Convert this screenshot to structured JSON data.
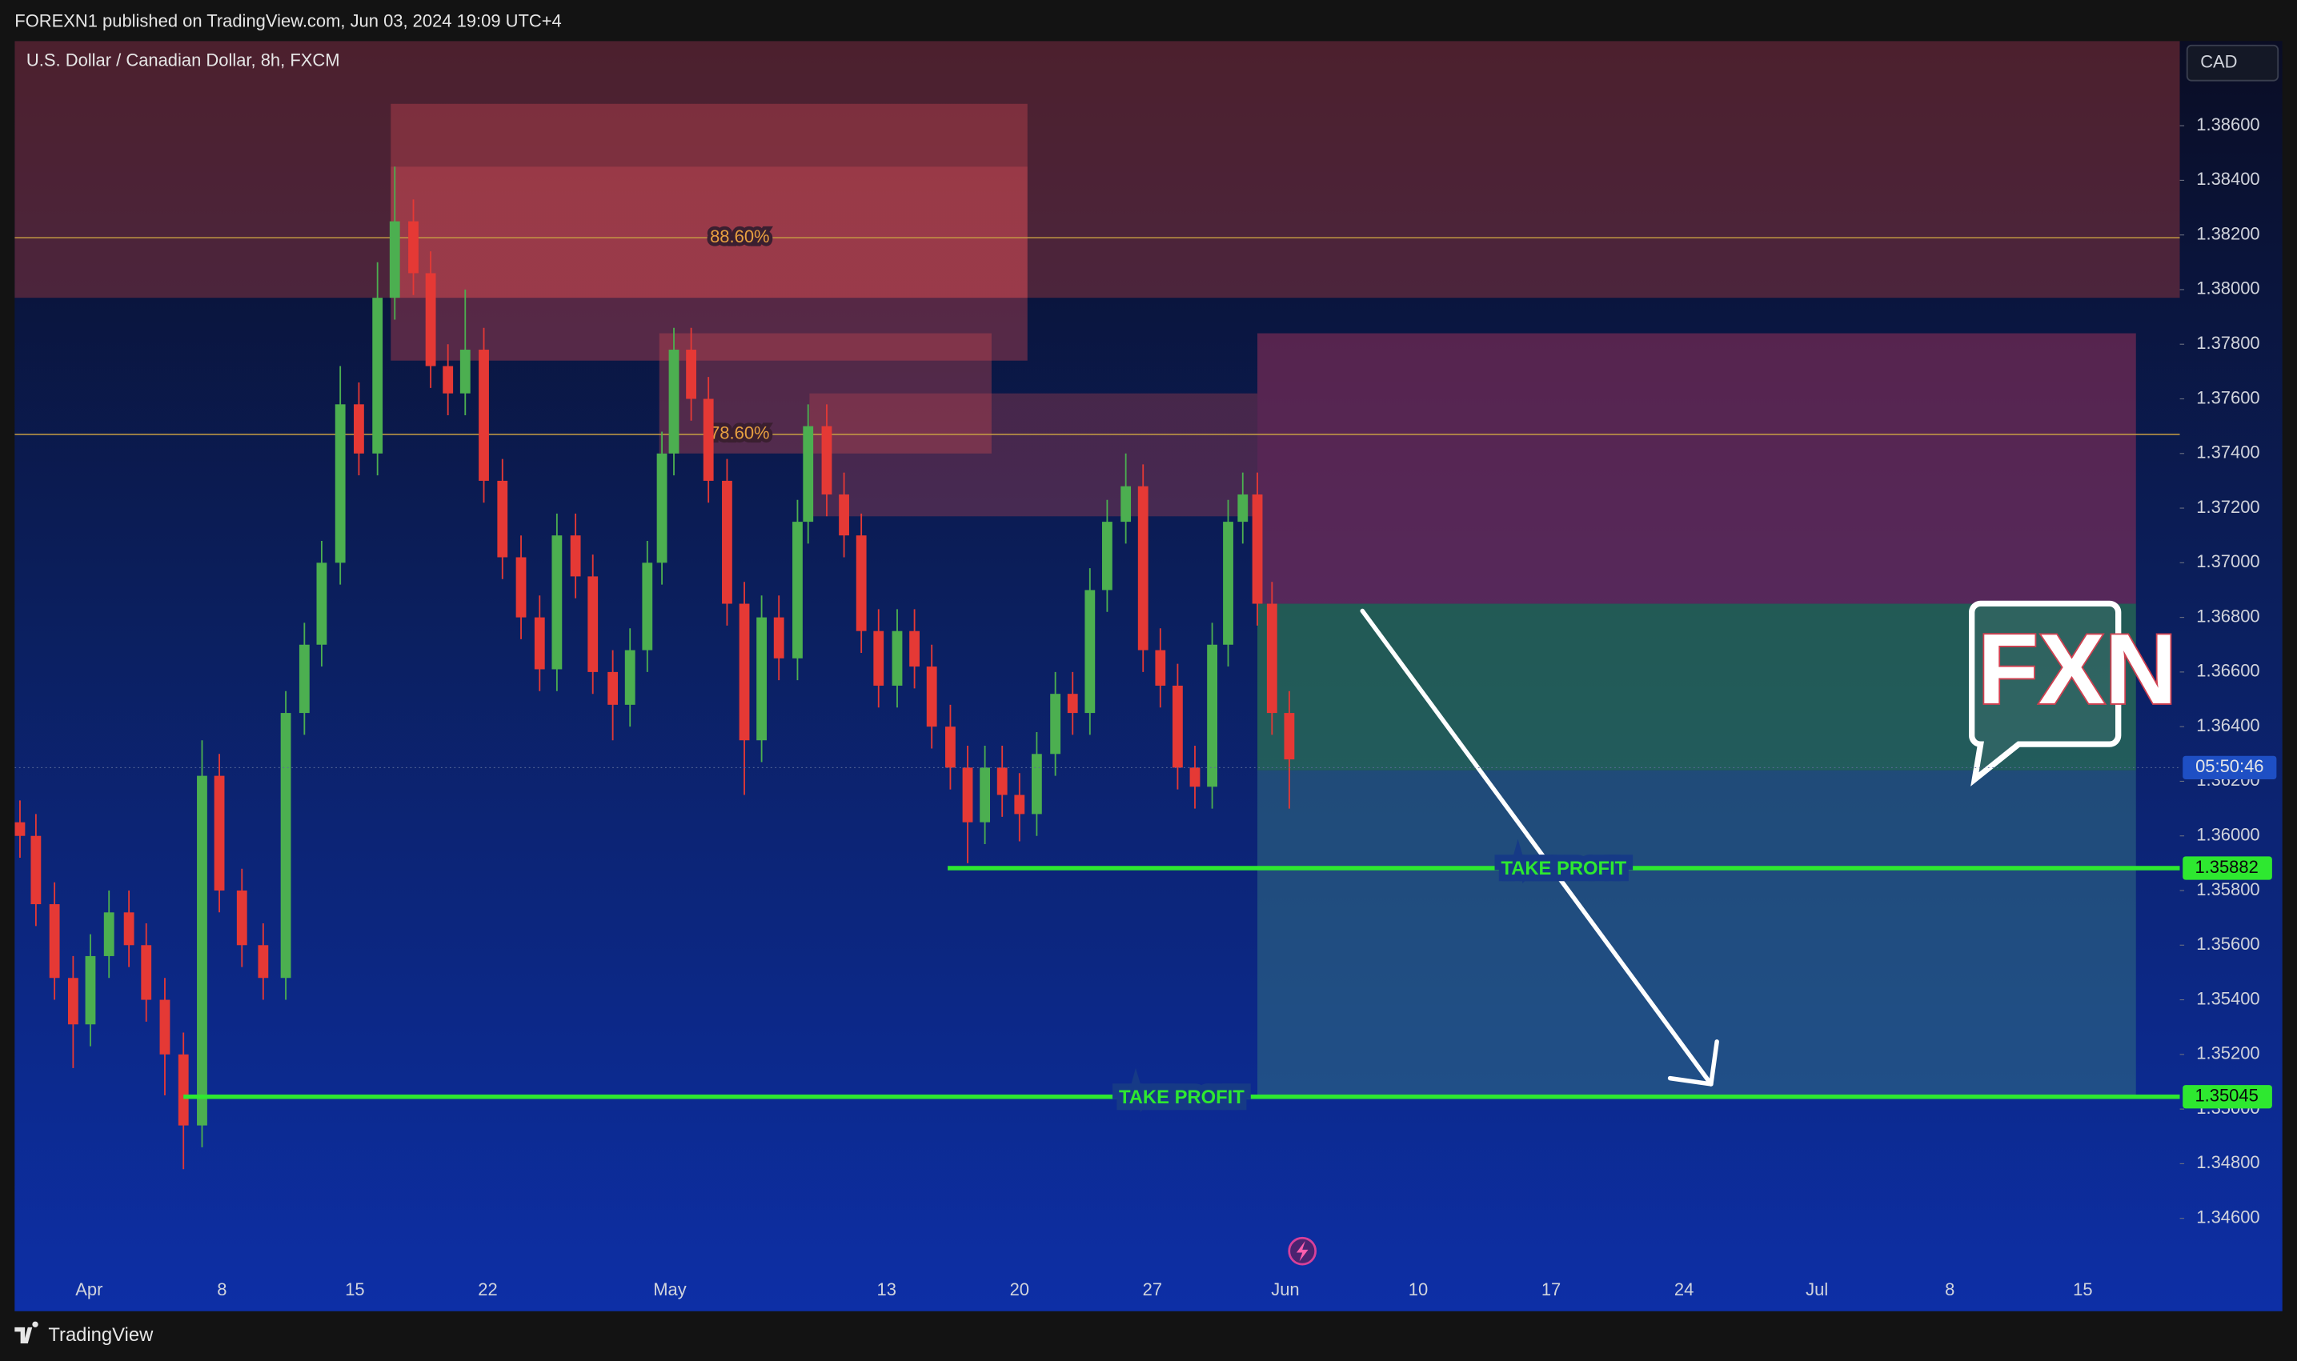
{
  "header": "FOREXN1 published on TradingView.com, Jun 03, 2024 19:09 UTC+4",
  "footer": "TradingView",
  "chart_data": {
    "type": "candlestick",
    "title": "U.S. Dollar / Canadian Dollar, 8h, FXCM",
    "currency": "CAD",
    "x": [
      -0.52,
      -0.4,
      -0.26,
      -0.12,
      0.01,
      0.15,
      0.3,
      0.43,
      0.57,
      0.71,
      0.85,
      0.98,
      1.15,
      1.31,
      1.48,
      1.62,
      1.75,
      1.89,
      2.03,
      2.17,
      2.3,
      2.44,
      2.57,
      2.7,
      2.83,
      2.97,
      3.11,
      3.25,
      3.39,
      3.52,
      3.66,
      3.79,
      3.94,
      4.07,
      4.2,
      4.31,
      4.4,
      4.53,
      4.66,
      4.8,
      4.93,
      5.06,
      5.19,
      5.33,
      5.41,
      5.55,
      5.68,
      5.81,
      5.94,
      6.08,
      6.21,
      6.34,
      6.48,
      6.61,
      6.74,
      6.87,
      7.0,
      7.13,
      7.27,
      7.4,
      7.53,
      7.66,
      7.8,
      7.93,
      8.06,
      8.19,
      8.32,
      8.45,
      8.57,
      8.68,
      8.79,
      8.9,
      9.03
    ],
    "open": [
      1.3605,
      1.36,
      1.3575,
      1.3548,
      1.3531,
      1.3556,
      1.3572,
      1.356,
      1.354,
      1.352,
      1.3494,
      1.3622,
      1.358,
      1.356,
      1.3548,
      1.3645,
      1.367,
      1.37,
      1.3758,
      1.374,
      1.3797,
      1.3825,
      1.3806,
      1.3772,
      1.3762,
      1.3778,
      1.373,
      1.3702,
      1.368,
      1.3661,
      1.371,
      1.3695,
      1.366,
      1.3648,
      1.3668,
      1.37,
      1.374,
      1.3778,
      1.376,
      1.373,
      1.3685,
      1.3635,
      1.368,
      1.3665,
      1.3715,
      1.375,
      1.3725,
      1.371,
      1.3675,
      1.3655,
      1.3675,
      1.3662,
      1.364,
      1.3625,
      1.3605,
      1.3625,
      1.3615,
      1.3608,
      1.363,
      1.3652,
      1.3645,
      1.369,
      1.3715,
      1.3728,
      1.3668,
      1.3655,
      1.3625,
      1.3618,
      1.367,
      1.3715,
      1.3725,
      1.3685,
      1.3645
    ],
    "high": [
      1.3613,
      1.3608,
      1.3583,
      1.3556,
      1.3564,
      1.358,
      1.358,
      1.3568,
      1.3548,
      1.3528,
      1.3635,
      1.363,
      1.3588,
      1.3568,
      1.3653,
      1.3678,
      1.3708,
      1.3772,
      1.3766,
      1.381,
      1.3845,
      1.3833,
      1.3814,
      1.378,
      1.38,
      1.3786,
      1.3738,
      1.371,
      1.3688,
      1.3718,
      1.3718,
      1.3703,
      1.3668,
      1.3676,
      1.3708,
      1.3748,
      1.3786,
      1.3786,
      1.3768,
      1.3738,
      1.3693,
      1.3688,
      1.3688,
      1.3723,
      1.3758,
      1.3758,
      1.3733,
      1.3718,
      1.3683,
      1.3683,
      1.3683,
      1.367,
      1.3648,
      1.3633,
      1.3633,
      1.3633,
      1.3623,
      1.3638,
      1.366,
      1.366,
      1.3698,
      1.3723,
      1.374,
      1.3736,
      1.3676,
      1.3663,
      1.3633,
      1.3678,
      1.3723,
      1.3733,
      1.3733,
      1.3693,
      1.3653
    ],
    "low": [
      1.3592,
      1.3567,
      1.354,
      1.3515,
      1.3523,
      1.3548,
      1.3552,
      1.3532,
      1.3505,
      1.3478,
      1.3486,
      1.3572,
      1.3552,
      1.354,
      1.354,
      1.3637,
      1.3662,
      1.3692,
      1.3732,
      1.3732,
      1.3789,
      1.3798,
      1.3764,
      1.3754,
      1.3754,
      1.3722,
      1.3694,
      1.3672,
      1.3653,
      1.3653,
      1.3687,
      1.3652,
      1.3635,
      1.364,
      1.366,
      1.3692,
      1.3732,
      1.3752,
      1.3722,
      1.3677,
      1.3615,
      1.3627,
      1.3657,
      1.3657,
      1.3707,
      1.3717,
      1.3702,
      1.3667,
      1.3647,
      1.3647,
      1.3654,
      1.3632,
      1.3617,
      1.359,
      1.3597,
      1.3607,
      1.3598,
      1.36,
      1.3622,
      1.3637,
      1.3637,
      1.3682,
      1.3707,
      1.366,
      1.3647,
      1.3617,
      1.361,
      1.361,
      1.3662,
      1.3707,
      1.3677,
      1.3637,
      1.361
    ],
    "close": [
      1.36,
      1.3575,
      1.3548,
      1.3531,
      1.3556,
      1.3572,
      1.356,
      1.354,
      1.352,
      1.3494,
      1.3622,
      1.358,
      1.356,
      1.3548,
      1.3645,
      1.367,
      1.37,
      1.3758,
      1.374,
      1.3797,
      1.3825,
      1.3806,
      1.3772,
      1.3762,
      1.3778,
      1.373,
      1.3702,
      1.368,
      1.3661,
      1.371,
      1.3695,
      1.366,
      1.3648,
      1.3668,
      1.37,
      1.374,
      1.3778,
      1.376,
      1.373,
      1.3685,
      1.3635,
      1.368,
      1.3665,
      1.3715,
      1.375,
      1.3725,
      1.371,
      1.3675,
      1.3655,
      1.3675,
      1.3662,
      1.364,
      1.3625,
      1.3605,
      1.3625,
      1.3615,
      1.3608,
      1.363,
      1.3652,
      1.3645,
      1.369,
      1.3715,
      1.3728,
      1.3668,
      1.3655,
      1.3625,
      1.3618,
      1.367,
      1.3715,
      1.3725,
      1.3685,
      1.3645,
      1.3628
    ],
    "up_color": "#4caf50",
    "down_color": "#e53935",
    "xlim": [
      -0.56,
      15.73
    ],
    "xticks": [
      {
        "value": 0,
        "label": "Apr"
      },
      {
        "value": 1,
        "label": "8"
      },
      {
        "value": 2,
        "label": "15"
      },
      {
        "value": 3,
        "label": "22"
      },
      {
        "value": 4.37,
        "label": "May"
      },
      {
        "value": 6,
        "label": "13"
      },
      {
        "value": 7,
        "label": "20"
      },
      {
        "value": 8,
        "label": "27"
      },
      {
        "value": 9,
        "label": "Jun"
      },
      {
        "value": 10,
        "label": "10"
      },
      {
        "value": 11,
        "label": "17"
      },
      {
        "value": 12,
        "label": "24"
      },
      {
        "value": 13,
        "label": "Jul"
      },
      {
        "value": 14,
        "label": "8"
      },
      {
        "value": 15,
        "label": "15"
      }
    ],
    "ylim": [
      1.3426,
      1.3891
    ],
    "yticks": [
      {
        "value": 1.346,
        "label": "1.34600"
      },
      {
        "value": 1.348,
        "label": "1.34800"
      },
      {
        "value": 1.35,
        "label": "1.35000"
      },
      {
        "value": 1.352,
        "label": "1.35200"
      },
      {
        "value": 1.354,
        "label": "1.35400"
      },
      {
        "value": 1.356,
        "label": "1.35600"
      },
      {
        "value": 1.358,
        "label": "1.35800"
      },
      {
        "value": 1.36,
        "label": "1.36000"
      },
      {
        "value": 1.362,
        "label": "1.36200"
      },
      {
        "value": 1.364,
        "label": "1.36400"
      },
      {
        "value": 1.366,
        "label": "1.36600"
      },
      {
        "value": 1.368,
        "label": "1.36800"
      },
      {
        "value": 1.37,
        "label": "1.37000"
      },
      {
        "value": 1.372,
        "label": "1.37200"
      },
      {
        "value": 1.374,
        "label": "1.37400"
      },
      {
        "value": 1.376,
        "label": "1.37600"
      },
      {
        "value": 1.378,
        "label": "1.37800"
      },
      {
        "value": 1.38,
        "label": "1.38000"
      },
      {
        "value": 1.382,
        "label": "1.38200"
      },
      {
        "value": 1.384,
        "label": "1.38400"
      },
      {
        "value": 1.386,
        "label": "1.38600"
      }
    ],
    "zones": [
      {
        "x": [
          -0.56,
          15.73
        ],
        "y": [
          1.3797,
          1.3891
        ],
        "color": "rgba(170,60,60,0.42)"
      },
      {
        "x": [
          2.27,
          7.06
        ],
        "y": [
          1.3774,
          1.3868
        ],
        "color": "rgba(200,70,80,0.40)"
      },
      {
        "x": [
          2.27,
          7.06
        ],
        "y": [
          1.3797,
          1.3845
        ],
        "color": "rgba(220,80,90,0.30)"
      },
      {
        "x": [
          4.29,
          6.79
        ],
        "y": [
          1.374,
          1.3784
        ],
        "color": "rgba(200,70,80,0.38)"
      },
      {
        "x": [
          5.42,
          8.79
        ],
        "y": [
          1.3717,
          1.3762
        ],
        "color": "rgba(200,70,80,0.32)"
      },
      {
        "x": [
          8.79,
          15.4
        ],
        "y": [
          1.3685,
          1.3784
        ],
        "color": "rgba(150,50,90,0.55)"
      },
      {
        "x": [
          8.79,
          15.4
        ],
        "y": [
          1.3624,
          1.3685
        ],
        "color": "rgba(50,130,80,0.60)"
      },
      {
        "x": [
          8.79,
          15.4
        ],
        "y": [
          1.3505,
          1.3624
        ],
        "color": "rgba(50,110,130,0.55)"
      }
    ],
    "fib_levels": [
      {
        "label": "88.60%",
        "value": 1.3819
      },
      {
        "label": "78.60%",
        "value": 1.3747
      }
    ],
    "take_profit": [
      {
        "label": "TAKE PROFIT",
        "value": 1.35882,
        "x_start": 6.46
      },
      {
        "label": "TAKE PROFIT",
        "value": 1.35045,
        "x_start": 0.71
      }
    ],
    "countdown": {
      "label": "05:50:46",
      "value": 1.3625
    },
    "watermark": "FXN"
  }
}
